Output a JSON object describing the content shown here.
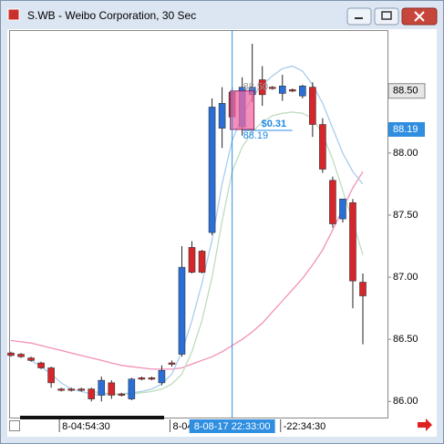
{
  "chart_data": {
    "type": "candlestick",
    "title": "S.WB - Weibo Corporation, 30 Sec",
    "categories": [
      null,
      null,
      null,
      null,
      null,
      "8-04:54:30",
      null,
      null,
      null,
      null,
      null,
      null,
      null,
      null,
      null,
      null,
      "8-04",
      null,
      null,
      null,
      null,
      null,
      null,
      null,
      null,
      null,
      null,
      "-22:34:30",
      null,
      null,
      null,
      null,
      null,
      null,
      null,
      null
    ],
    "crosshair_label": "8-08-17 22:33:00",
    "candles": {
      "open": [
        86.39,
        86.38,
        86.35,
        86.31,
        86.27,
        86.1,
        86.1,
        86.1,
        86.1,
        86.05,
        86.15,
        86.06,
        86.02,
        86.19,
        86.19,
        86.15,
        86.31,
        86.38,
        87.24,
        87.21,
        87.36,
        88.2,
        88.49,
        88.21,
        88.47,
        88.59,
        88.53,
        88.48,
        88.51,
        88.46,
        88.53,
        88.23,
        87.78,
        87.47,
        87.6,
        86.96
      ],
      "high": [
        86.4,
        86.39,
        86.36,
        86.32,
        86.28,
        86.11,
        86.11,
        86.11,
        86.11,
        86.2,
        86.17,
        86.07,
        86.19,
        86.2,
        86.2,
        86.29,
        86.33,
        87.25,
        87.29,
        87.22,
        88.44,
        88.53,
        88.53,
        88.61,
        88.88,
        88.7,
        88.54,
        88.63,
        88.52,
        88.55,
        88.57,
        88.28,
        87.81,
        87.49,
        87.63,
        87.03
      ],
      "low": [
        86.36,
        86.35,
        86.32,
        86.26,
        86.11,
        86.08,
        86.08,
        86.08,
        86.0,
        86.0,
        86.02,
        86.04,
        86.01,
        86.17,
        86.17,
        86.13,
        86.28,
        86.36,
        87.03,
        87.03,
        87.34,
        88.04,
        88.21,
        88.14,
        88.41,
        88.38,
        88.51,
        88.42,
        88.49,
        88.44,
        88.13,
        87.84,
        87.4,
        87.44,
        86.75,
        86.46
      ],
      "close": [
        86.37,
        86.36,
        86.33,
        86.27,
        86.15,
        86.09,
        86.09,
        86.09,
        86.02,
        86.17,
        86.05,
        86.05,
        86.18,
        86.18,
        86.18,
        86.25,
        86.3,
        87.08,
        87.04,
        87.04,
        88.37,
        88.4,
        88.29,
        88.53,
        88.53,
        88.47,
        88.52,
        88.54,
        88.5,
        88.54,
        88.23,
        87.87,
        87.43,
        87.63,
        86.97,
        86.85
      ]
    },
    "up_color": "#2a6fd8",
    "down_color": "#d6262b",
    "moving_averages": [
      {
        "color": "#f48fb8",
        "values": [
          86.49,
          86.48,
          86.47,
          86.45,
          86.43,
          86.41,
          86.39,
          86.37,
          86.35,
          86.33,
          86.31,
          86.29,
          86.28,
          86.27,
          86.26,
          86.26,
          86.26,
          86.27,
          86.3,
          86.33,
          86.36,
          86.4,
          86.45,
          86.5,
          86.56,
          86.63,
          86.72,
          86.81,
          86.9,
          86.99,
          87.1,
          87.22,
          87.38,
          87.55,
          87.72,
          87.85
        ]
      },
      {
        "color": "#a9cdec",
        "values": [
          null,
          null,
          86.33,
          86.28,
          86.22,
          86.15,
          86.1,
          86.08,
          86.06,
          86.05,
          86.06,
          86.06,
          86.07,
          86.08,
          86.1,
          86.14,
          86.22,
          86.4,
          86.65,
          86.95,
          87.3,
          87.75,
          88.1,
          88.3,
          88.45,
          88.55,
          88.62,
          88.68,
          88.7,
          88.66,
          88.55,
          88.4,
          88.2,
          88.0,
          87.85,
          87.75
        ]
      },
      {
        "color": "#bfdcbf",
        "values": [
          null,
          null,
          null,
          null,
          null,
          null,
          null,
          null,
          86.08,
          86.07,
          86.06,
          86.06,
          86.06,
          86.07,
          86.08,
          86.1,
          86.14,
          86.22,
          86.4,
          86.65,
          87.0,
          87.45,
          87.85,
          88.05,
          88.17,
          88.25,
          88.3,
          88.32,
          88.33,
          88.32,
          88.28,
          88.15,
          87.95,
          87.7,
          87.45,
          87.18
        ]
      }
    ],
    "ylim": [
      85.87,
      88.99
    ],
    "yticks": [
      {
        "value": 86,
        "label": "86.00"
      },
      {
        "value": 86.5,
        "label": "86.50"
      },
      {
        "value": 87,
        "label": "87.00"
      },
      {
        "value": 87.5,
        "label": "87.50"
      },
      {
        "value": 88,
        "label": "88.00"
      }
    ],
    "measure": {
      "high": {
        "value": 88.5,
        "label": "88.50"
      },
      "low": {
        "value": 88.19,
        "label": "88.19"
      },
      "change": {
        "value": 0.31,
        "label": "$0.31"
      }
    }
  }
}
